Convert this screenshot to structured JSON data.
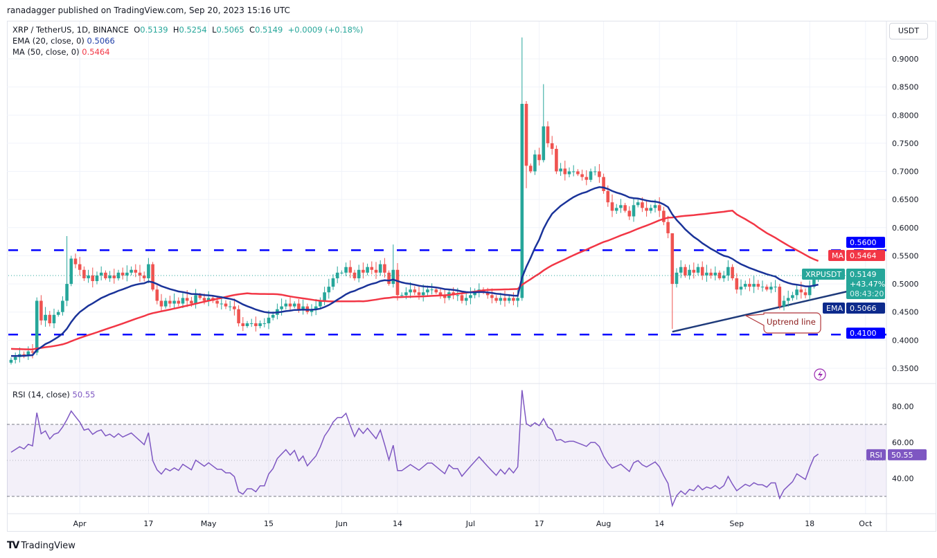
{
  "published": "ranadagger published on TradingView.com, Sep 20, 2023 15:16 UTC",
  "legend": {
    "symbol": "XRP / TetherUS, 1D, BINANCE",
    "o_label": "O",
    "open": "0.5139",
    "h_label": "H",
    "high": "0.5254",
    "l_label": "L",
    "low": "0.5065",
    "c_label": "C",
    "close": "0.5149",
    "change": "+0.0009 (+0.18%)",
    "ema_label": "EMA (20, close, 0)",
    "ema_value": "0.5066",
    "ma_label": "MA (50, close, 0)",
    "ma_value": "0.5464",
    "rsi_label": "RSI (14, close)",
    "rsi_value": "50.55"
  },
  "currency_button": "USDT",
  "axis_tags": {
    "resistance": "0.5600",
    "ma_name": "MA",
    "ma_value": "0.5464",
    "symbol_name": "XRPUSDT",
    "price": "0.5149",
    "pct": "+43.47%",
    "countdown": "08:43:20",
    "ema_name": "EMA",
    "ema_value": "0.5066",
    "support": "0.4100",
    "rsi_name": "RSI",
    "rsi_value": "50.55"
  },
  "annotation": "Uptrend line",
  "brand": "TradingView",
  "colors": {
    "up": "#26a69a",
    "down": "#ef5350",
    "ema": "#1a3399",
    "ma": "#f23645",
    "rsi": "#7e57c2",
    "levels": "#0000ff"
  },
  "chart_data": {
    "type": "candlestick",
    "start_date": "2023-03-16",
    "end_date": "2023-09-20",
    "closes": [
      0.365,
      0.37,
      0.375,
      0.372,
      0.38,
      0.378,
      0.47,
      0.435,
      0.445,
      0.43,
      0.445,
      0.45,
      0.47,
      0.5,
      0.545,
      0.535,
      0.525,
      0.51,
      0.515,
      0.505,
      0.515,
      0.52,
      0.51,
      0.515,
      0.51,
      0.52,
      0.515,
      0.52,
      0.525,
      0.52,
      0.515,
      0.51,
      0.535,
      0.49,
      0.47,
      0.46,
      0.47,
      0.465,
      0.47,
      0.465,
      0.475,
      0.47,
      0.465,
      0.48,
      0.475,
      0.47,
      0.475,
      0.47,
      0.465,
      0.465,
      0.46,
      0.46,
      0.455,
      0.43,
      0.425,
      0.43,
      0.43,
      0.425,
      0.43,
      0.43,
      0.44,
      0.445,
      0.455,
      0.46,
      0.465,
      0.46,
      0.465,
      0.455,
      0.46,
      0.45,
      0.455,
      0.46,
      0.47,
      0.485,
      0.495,
      0.51,
      0.52,
      0.52,
      0.53,
      0.52,
      0.51,
      0.525,
      0.52,
      0.53,
      0.525,
      0.52,
      0.535,
      0.52,
      0.5,
      0.525,
      0.48,
      0.48,
      0.485,
      0.49,
      0.485,
      0.48,
      0.485,
      0.49,
      0.49,
      0.485,
      0.48,
      0.475,
      0.485,
      0.48,
      0.48,
      0.47,
      0.475,
      0.48,
      0.485,
      0.49,
      0.485,
      0.48,
      0.475,
      0.47,
      0.475,
      0.47,
      0.475,
      0.47,
      0.475,
      0.82,
      0.71,
      0.7,
      0.73,
      0.72,
      0.78,
      0.75,
      0.74,
      0.7,
      0.705,
      0.695,
      0.7,
      0.7,
      0.695,
      0.69,
      0.685,
      0.7,
      0.7,
      0.69,
      0.665,
      0.645,
      0.63,
      0.635,
      0.64,
      0.63,
      0.62,
      0.64,
      0.645,
      0.635,
      0.63,
      0.635,
      0.64,
      0.63,
      0.61,
      0.59,
      0.5,
      0.52,
      0.53,
      0.515,
      0.525,
      0.52,
      0.53,
      0.515,
      0.52,
      0.515,
      0.52,
      0.51,
      0.515,
      0.53,
      0.51,
      0.49,
      0.495,
      0.5,
      0.495,
      0.5,
      0.495,
      0.495,
      0.49,
      0.495,
      0.495,
      0.46,
      0.47,
      0.475,
      0.48,
      0.49,
      0.485,
      0.48,
      0.495,
      0.51,
      0.5149
    ],
    "wick_extremes": [
      {
        "date": "2023-03-29",
        "high": 0.585
      },
      {
        "date": "2023-06-13",
        "high": 0.57
      },
      {
        "date": "2023-07-13",
        "high": 0.938,
        "low": 0.47
      },
      {
        "date": "2023-07-14",
        "high": 0.825,
        "low": 0.67
      },
      {
        "date": "2023-07-18",
        "high": 0.855
      },
      {
        "date": "2023-08-17",
        "high": 0.59,
        "low": 0.42
      },
      {
        "date": "2023-09-11",
        "low": 0.455
      }
    ],
    "horizontal_levels": [
      0.56,
      0.41
    ],
    "trendline": {
      "from": {
        "date": "2023-08-17",
        "price": 0.415
      },
      "to": {
        "date": "2023-09-27",
        "price": 0.487
      }
    },
    "y_ticks": [
      "0.9000",
      "0.8500",
      "0.8000",
      "0.7500",
      "0.7000",
      "0.6500",
      "0.6000",
      "0.5500",
      "0.5000",
      "0.4500",
      "0.4000",
      "0.3500"
    ],
    "ylim": [
      0.33,
      0.96
    ],
    "x_ticks": [
      {
        "date": "2023-04-01",
        "label": "Apr"
      },
      {
        "date": "2023-04-17",
        "label": "17"
      },
      {
        "date": "2023-05-01",
        "label": "May"
      },
      {
        "date": "2023-05-15",
        "label": "15"
      },
      {
        "date": "2023-06-01",
        "label": "Jun"
      },
      {
        "date": "2023-06-14",
        "label": "14"
      },
      {
        "date": "2023-07-01",
        "label": "Jul"
      },
      {
        "date": "2023-07-17",
        "label": "17"
      },
      {
        "date": "2023-08-01",
        "label": "Aug"
      },
      {
        "date": "2023-08-14",
        "label": "14"
      },
      {
        "date": "2023-09-01",
        "label": "Sep"
      },
      {
        "date": "2023-09-18",
        "label": "18"
      },
      {
        "date": "2023-10-01",
        "label": "Oct"
      }
    ],
    "indicators": [
      "EMA 20",
      "MA 50",
      "RSI 14"
    ],
    "rsi_ticks": [
      "80.00",
      "60.00",
      "40.00"
    ],
    "rsi_bands": [
      70,
      30
    ],
    "rsi_ylim": [
      20,
      90
    ]
  }
}
